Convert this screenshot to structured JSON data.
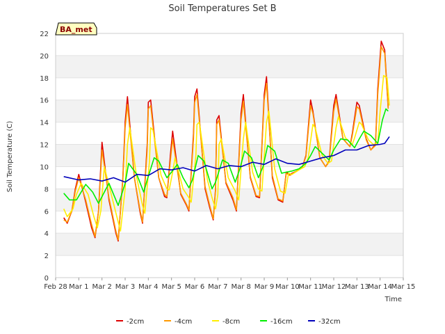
{
  "chart_data": {
    "type": "line",
    "title": "Soil Temperatures Set B",
    "xlabel": "Time",
    "ylabel": "Soil Temperature (C)",
    "badge": "BA_met",
    "xlim": [
      0,
      15
    ],
    "ylim": [
      0,
      22
    ],
    "y_ticks": [
      0,
      2,
      4,
      6,
      8,
      10,
      12,
      14,
      16,
      18,
      20,
      22
    ],
    "x_ticks": [
      {
        "pos": 0,
        "label": "Feb 28"
      },
      {
        "pos": 1,
        "label": "Mar 1"
      },
      {
        "pos": 2,
        "label": "Mar 2"
      },
      {
        "pos": 3,
        "label": "Mar 3"
      },
      {
        "pos": 4,
        "label": "Mar 4"
      },
      {
        "pos": 5,
        "label": "Mar 5"
      },
      {
        "pos": 6,
        "label": "Mar 6"
      },
      {
        "pos": 7,
        "label": "Mar 7"
      },
      {
        "pos": 8,
        "label": "Mar 8"
      },
      {
        "pos": 9,
        "label": "Mar 9"
      },
      {
        "pos": 10,
        "label": "Mar 10"
      },
      {
        "pos": 11,
        "label": "Mar 11"
      },
      {
        "pos": 12,
        "label": "Mar 12"
      },
      {
        "pos": 13,
        "label": "Mar 13"
      },
      {
        "pos": 14,
        "label": "Mar 14"
      },
      {
        "pos": 15,
        "label": "Mar 15"
      }
    ],
    "legend_position": "bottom",
    "grid": "horizontal bands",
    "series": [
      {
        "name": "-2cm",
        "color": "#dd0000",
        "x": [
          0.35,
          0.5,
          0.7,
          0.85,
          1.0,
          1.3,
          1.55,
          1.7,
          1.85,
          2.0,
          2.3,
          2.6,
          2.7,
          2.9,
          3.0,
          3.1,
          3.4,
          3.65,
          3.75,
          3.95,
          4.0,
          4.1,
          4.45,
          4.7,
          4.8,
          4.95,
          5.05,
          5.4,
          5.65,
          5.75,
          5.95,
          6.0,
          6.1,
          6.45,
          6.65,
          6.8,
          6.9,
          6.95,
          7.05,
          7.35,
          7.65,
          7.8,
          8.0,
          8.1,
          8.4,
          8.65,
          8.8,
          9.0,
          9.1,
          9.35,
          9.6,
          9.8,
          9.95,
          10.1,
          10.4,
          10.65,
          10.8,
          11.0,
          11.1,
          11.4,
          11.65,
          11.8,
          12.0,
          12.1,
          12.4,
          12.7,
          12.8,
          13.0,
          13.1,
          13.4,
          13.6,
          13.8,
          13.9,
          14.05,
          14.2,
          14.35
        ],
        "y": [
          5.4,
          4.9,
          6.0,
          8.0,
          9.3,
          6.8,
          4.5,
          3.6,
          6.0,
          12.2,
          7.0,
          4.0,
          3.3,
          9.0,
          14.0,
          16.3,
          9.0,
          5.8,
          4.9,
          12.0,
          15.8,
          16.0,
          9.0,
          7.3,
          7.2,
          11.0,
          13.2,
          7.5,
          6.5,
          6.0,
          13.0,
          16.3,
          17.0,
          8.0,
          6.3,
          5.2,
          8.0,
          14.2,
          14.6,
          8.5,
          7.0,
          6.0,
          14.8,
          16.5,
          9.0,
          7.3,
          7.2,
          16.5,
          18.1,
          9.0,
          7.0,
          6.8,
          9.5,
          9.3,
          9.6,
          10.0,
          11.0,
          16.0,
          15.0,
          10.8,
          10.0,
          10.5,
          15.5,
          16.5,
          12.5,
          11.8,
          13.0,
          15.8,
          15.5,
          12.5,
          11.5,
          12.0,
          17.0,
          21.3,
          20.5,
          15.3
        ]
      },
      {
        "name": "-4cm",
        "color": "#ff9900",
        "x": [
          0.35,
          0.5,
          0.7,
          0.85,
          1.0,
          1.3,
          1.55,
          1.7,
          1.85,
          2.0,
          2.3,
          2.6,
          2.7,
          2.9,
          3.0,
          3.1,
          3.4,
          3.65,
          3.75,
          3.95,
          4.0,
          4.1,
          4.45,
          4.7,
          4.8,
          4.95,
          5.05,
          5.4,
          5.65,
          5.75,
          5.95,
          6.0,
          6.1,
          6.45,
          6.65,
          6.8,
          6.9,
          6.95,
          7.05,
          7.35,
          7.65,
          7.8,
          8.0,
          8.1,
          8.4,
          8.65,
          8.8,
          9.0,
          9.1,
          9.35,
          9.6,
          9.8,
          9.95,
          10.1,
          10.4,
          10.65,
          10.8,
          11.0,
          11.1,
          11.4,
          11.65,
          11.8,
          12.0,
          12.1,
          12.4,
          12.7,
          12.8,
          13.0,
          13.1,
          13.4,
          13.6,
          13.8,
          13.9,
          14.05,
          14.2,
          14.35
        ],
        "y": [
          5.2,
          5.0,
          6.0,
          7.8,
          9.0,
          7.0,
          4.8,
          3.7,
          6.0,
          11.5,
          7.2,
          4.2,
          3.4,
          8.8,
          13.5,
          15.6,
          9.0,
          6.0,
          5.0,
          11.5,
          15.2,
          15.5,
          9.0,
          7.5,
          7.3,
          10.5,
          12.5,
          7.6,
          6.6,
          6.1,
          12.5,
          15.8,
          16.5,
          8.2,
          6.5,
          5.3,
          7.8,
          13.8,
          14.2,
          8.6,
          7.2,
          6.1,
          14.2,
          15.9,
          9.1,
          7.4,
          7.3,
          16.0,
          17.5,
          9.2,
          7.1,
          6.9,
          9.4,
          9.2,
          9.6,
          10.0,
          10.9,
          15.5,
          14.8,
          10.8,
          10.0,
          10.4,
          15.0,
          16.1,
          12.5,
          11.8,
          12.8,
          15.4,
          15.2,
          12.4,
          11.5,
          11.9,
          16.5,
          20.8,
          20.2,
          15.2
        ]
      },
      {
        "name": "-8cm",
        "color": "#ffee00",
        "x": [
          0.35,
          0.5,
          0.75,
          0.9,
          1.1,
          1.4,
          1.65,
          1.8,
          1.95,
          2.1,
          2.4,
          2.7,
          2.8,
          3.0,
          3.1,
          3.2,
          3.5,
          3.75,
          3.85,
          4.05,
          4.1,
          4.2,
          4.55,
          4.8,
          4.9,
          5.05,
          5.15,
          5.5,
          5.75,
          5.85,
          6.05,
          6.1,
          6.2,
          6.55,
          6.75,
          6.9,
          7.0,
          7.05,
          7.15,
          7.45,
          7.75,
          7.9,
          8.1,
          8.2,
          8.5,
          8.75,
          8.9,
          9.1,
          9.2,
          9.45,
          9.7,
          9.9,
          10.05,
          10.2,
          10.5,
          10.75,
          10.9,
          11.1,
          11.2,
          11.5,
          11.75,
          11.9,
          12.1,
          12.2,
          12.5,
          12.8,
          12.9,
          13.1,
          13.2,
          13.5,
          13.7,
          13.9,
          14.0,
          14.15,
          14.3,
          14.4
        ],
        "y": [
          6.2,
          5.5,
          6.2,
          7.5,
          8.5,
          7.5,
          5.5,
          4.5,
          6.0,
          10.0,
          7.5,
          5.0,
          4.2,
          8.0,
          12.0,
          13.5,
          9.0,
          6.5,
          5.8,
          10.5,
          13.5,
          13.3,
          9.2,
          8.0,
          7.9,
          9.5,
          10.8,
          8.0,
          7.2,
          6.8,
          11.0,
          13.8,
          14.0,
          8.8,
          7.2,
          6.2,
          7.5,
          12.0,
          12.5,
          9.0,
          7.8,
          7.0,
          12.5,
          14.0,
          9.5,
          8.0,
          7.8,
          14.0,
          15.0,
          9.8,
          7.8,
          7.6,
          9.4,
          9.3,
          9.7,
          10.0,
          10.8,
          13.8,
          13.5,
          11.0,
          10.3,
          10.5,
          13.5,
          14.5,
          12.6,
          12.0,
          12.6,
          14.0,
          13.8,
          12.4,
          12.0,
          12.1,
          15.0,
          18.2,
          18.0,
          15.5
        ]
      },
      {
        "name": "-16cm",
        "color": "#00ee00",
        "x": [
          0.35,
          0.6,
          0.9,
          1.3,
          1.6,
          1.85,
          2.3,
          2.7,
          3.0,
          3.15,
          3.5,
          3.8,
          3.95,
          4.25,
          4.45,
          4.8,
          5.0,
          5.25,
          5.5,
          5.75,
          5.9,
          6.15,
          6.4,
          6.75,
          6.9,
          7.2,
          7.45,
          7.75,
          7.95,
          8.15,
          8.45,
          8.75,
          8.95,
          9.15,
          9.45,
          9.75,
          9.95,
          10.2,
          10.5,
          10.8,
          11.0,
          11.2,
          11.5,
          11.8,
          12.0,
          12.3,
          12.6,
          12.9,
          13.1,
          13.3,
          13.6,
          13.9,
          14.1,
          14.25,
          14.35
        ],
        "y": [
          7.6,
          7.0,
          7.0,
          8.4,
          7.7,
          6.7,
          8.5,
          6.5,
          8.5,
          10.3,
          9.3,
          7.7,
          8.8,
          10.8,
          10.5,
          9.0,
          9.5,
          10.2,
          9.0,
          8.1,
          8.8,
          11.0,
          10.5,
          8.0,
          8.6,
          10.6,
          10.3,
          8.6,
          9.8,
          11.4,
          10.8,
          9.0,
          10.0,
          11.9,
          11.4,
          9.4,
          9.5,
          9.6,
          9.8,
          10.3,
          11.0,
          11.8,
          11.2,
          10.6,
          11.5,
          12.5,
          12.4,
          11.7,
          12.5,
          13.2,
          12.8,
          12.1,
          14.2,
          15.2,
          15.0
        ]
      },
      {
        "name": "-32cm",
        "color": "#0000bb",
        "x": [
          0.35,
          1.0,
          1.5,
          2.0,
          2.5,
          3.0,
          3.5,
          4.0,
          4.5,
          5.0,
          5.5,
          6.0,
          6.5,
          7.0,
          7.5,
          8.0,
          8.5,
          9.0,
          9.5,
          10.0,
          10.5,
          11.0,
          11.5,
          12.0,
          12.5,
          13.0,
          13.5,
          14.0,
          14.2,
          14.4
        ],
        "y": [
          9.1,
          8.8,
          8.9,
          8.7,
          9.0,
          8.6,
          9.3,
          9.2,
          9.8,
          9.7,
          9.9,
          9.6,
          10.1,
          9.8,
          10.1,
          10.0,
          10.4,
          10.2,
          10.7,
          10.3,
          10.2,
          10.5,
          10.8,
          11.0,
          11.5,
          11.5,
          11.9,
          12.0,
          12.1,
          12.7
        ]
      }
    ]
  }
}
